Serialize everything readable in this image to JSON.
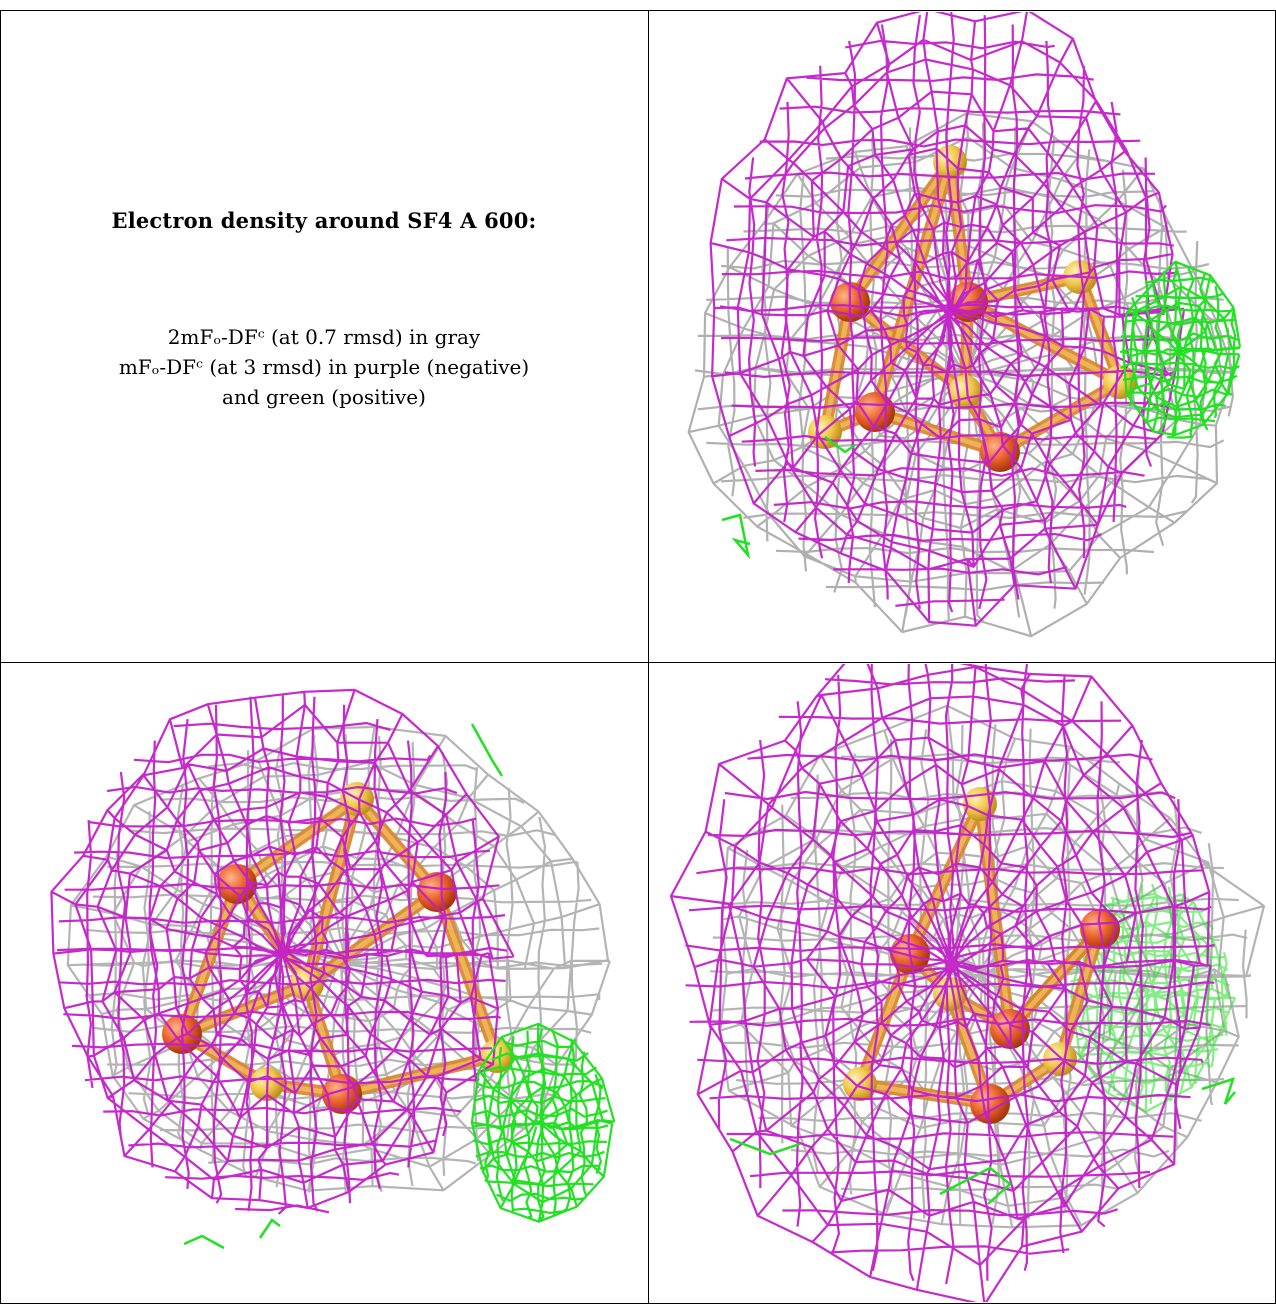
{
  "caption": {
    "title": "Electron density around SF4 A 600:",
    "line1": "2mFₒ-DFᶜ (at 0.7 rmsd) in gray",
    "line2": "mFₒ-DFᶜ (at 3 rmsd) in purple (negative)",
    "line3": "and green (positive)"
  },
  "colors": {
    "gray_mesh": "#a8a8a8",
    "purple_mesh": "#c21fc9",
    "green_mesh": "#22e022",
    "iron": "#e8612a",
    "sulfur": "#f0c84a"
  },
  "panels": [
    {
      "view": "top-right"
    },
    {
      "view": "bottom-left"
    },
    {
      "view": "bottom-right"
    }
  ]
}
